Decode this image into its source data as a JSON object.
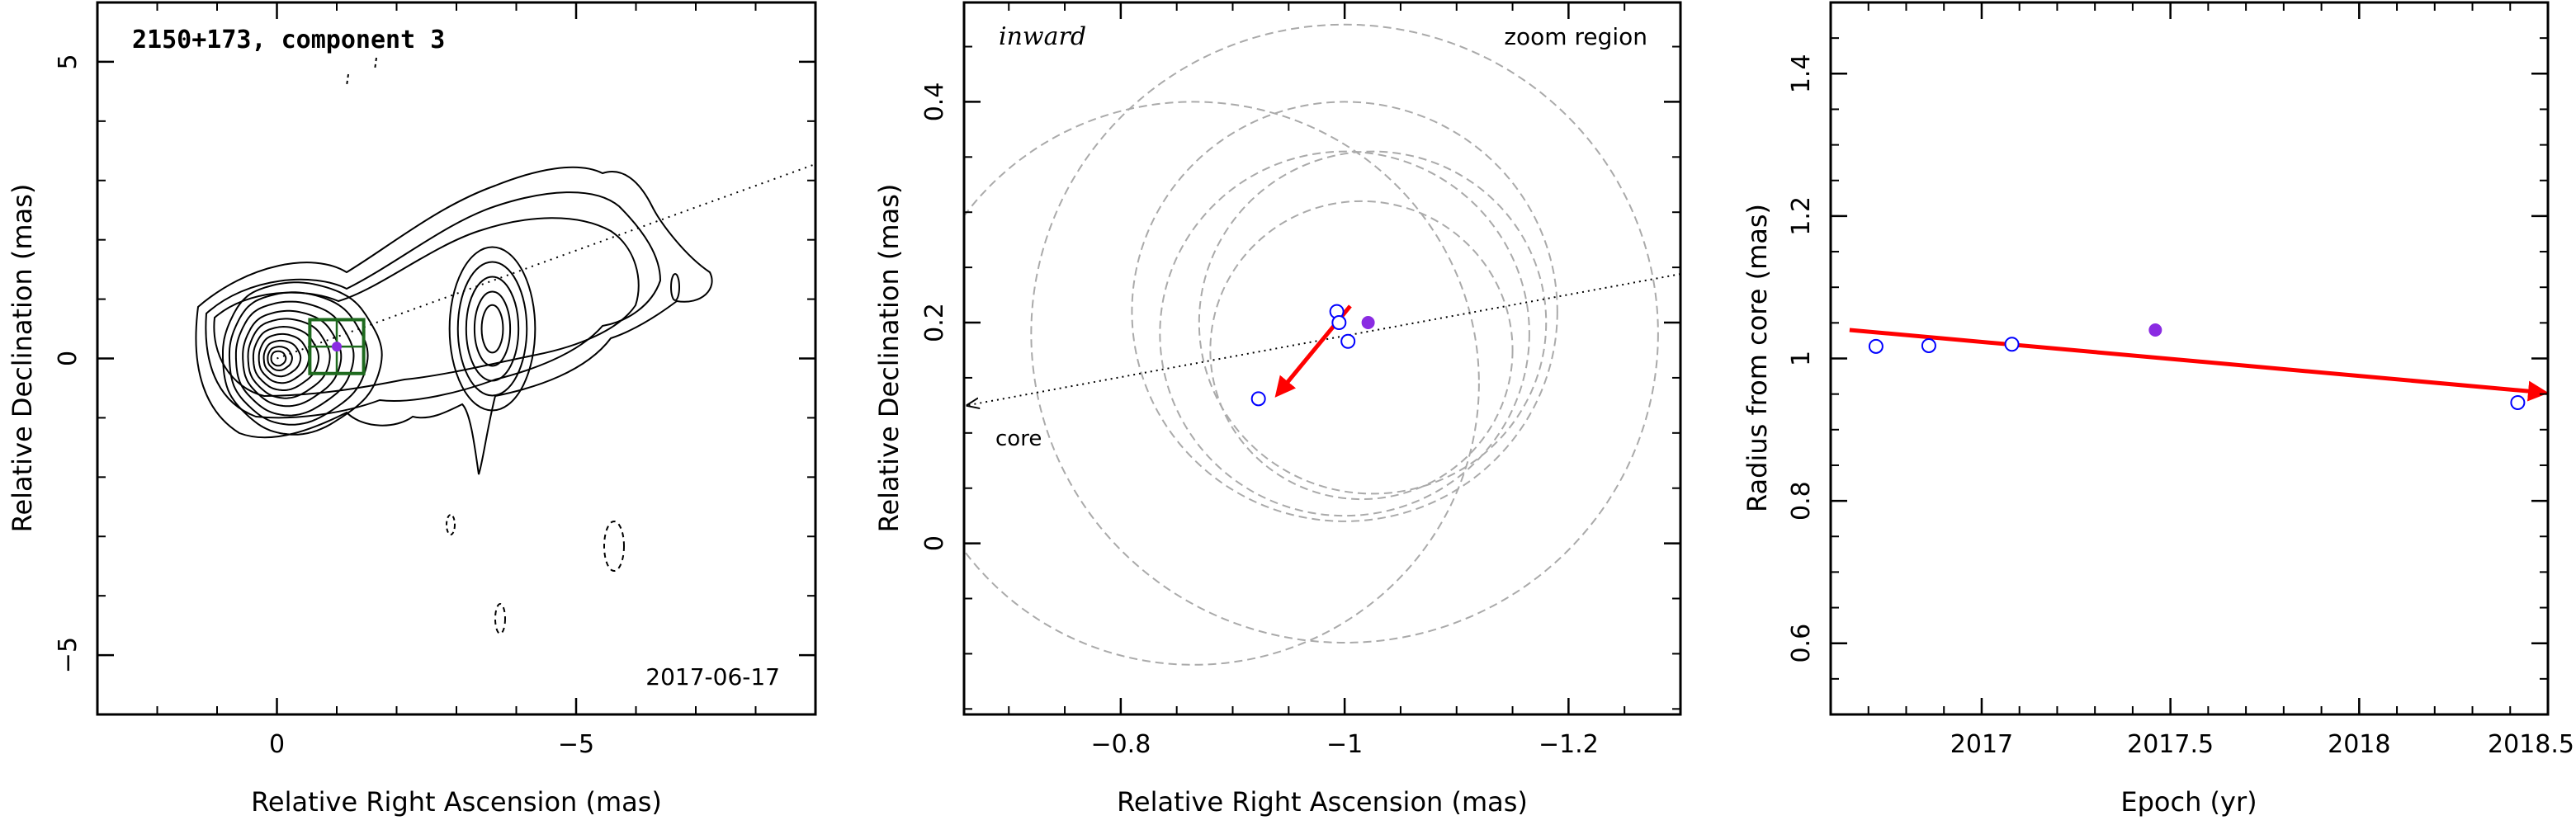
{
  "chart_data": [
    {
      "type": "contour",
      "title": "2150+173, component 3",
      "date": "2017-06-17",
      "xlabel": "Relative Right Ascension (mas)",
      "ylabel": "Relative Declination (mas)",
      "xlim": [
        3,
        -9
      ],
      "ylim": [
        -6,
        6
      ],
      "x_ticks": [
        {
          "v": 0,
          "label": "0"
        },
        {
          "v": -5,
          "label": "−5"
        }
      ],
      "y_ticks": [
        {
          "v": 5,
          "label": "5"
        },
        {
          "v": 0,
          "label": "0"
        },
        {
          "v": -5,
          "label": "−5"
        }
      ],
      "core_line_angle_deg": 20,
      "component": {
        "x": -1.0,
        "y": 0.2,
        "box_halfwidth": 0.45
      },
      "core_peak": {
        "x": 0.0,
        "y": 0.0
      },
      "knot": {
        "x": -3.6,
        "y": 0.5
      },
      "colors": {
        "contour": "#000000",
        "box": "#1e6a1e",
        "point": "#8a2be2"
      }
    },
    {
      "type": "scatter",
      "label_inward": "inward",
      "label_zoom": "zoom region",
      "label_core": "core",
      "xlabel": "Relative Right Ascension (mas)",
      "ylabel": "Relative Declination (mas)",
      "xlim": [
        -0.66,
        -1.3
      ],
      "ylim": [
        -0.155,
        0.49
      ],
      "x_ticks": [
        {
          "v": -0.8,
          "label": "−0.8"
        },
        {
          "v": -1.0,
          "label": "−1"
        },
        {
          "v": -1.2,
          "label": "−1.2"
        }
      ],
      "y_ticks": [
        {
          "v": 0.4,
          "label": "0.4"
        },
        {
          "v": 0.2,
          "label": "0.2"
        },
        {
          "v": 0,
          "label": "0"
        }
      ],
      "points_open": [
        {
          "x": -0.923,
          "y": 0.131
        },
        {
          "x": -0.993,
          "y": 0.21
        },
        {
          "x": -0.995,
          "y": 0.2
        },
        {
          "x": -1.003,
          "y": 0.183
        }
      ],
      "point_filled": {
        "x": -1.021,
        "y": 0.2
      },
      "circles": [
        {
          "x": -0.865,
          "y": 0.145,
          "r": 0.255
        },
        {
          "x": -1.0,
          "y": 0.19,
          "r": 0.28
        },
        {
          "x": -1.0,
          "y": 0.21,
          "r": 0.19
        },
        {
          "x": -1.0,
          "y": 0.19,
          "r": 0.165
        },
        {
          "x": -1.025,
          "y": 0.2,
          "r": 0.155
        },
        {
          "x": -1.015,
          "y": 0.175,
          "r": 0.135
        }
      ],
      "arrow": {
        "x1": -1.005,
        "y1": 0.215,
        "x2": -0.94,
        "y2": 0.135
      },
      "core_line": {
        "x1": -0.66,
        "y1": 0.125,
        "x2": -1.3,
        "y2": 0.244
      },
      "colors": {
        "open": "#0000ff",
        "filled": "#8a2be2",
        "arrow": "#ff0000",
        "circle": "#aaaaaa"
      }
    },
    {
      "type": "scatter",
      "xlabel": "Epoch (yr)",
      "ylabel": "Radius from core (mas)",
      "xlim": [
        16.6,
        18.5
      ],
      "ylim": [
        0.5,
        1.5
      ],
      "x_ticks": [
        {
          "v": 17,
          "label": "2017"
        },
        {
          "v": 17.5,
          "label": "2017.5"
        },
        {
          "v": 18,
          "label": "2018"
        },
        {
          "v": 18.5,
          "label": "2018.5"
        }
      ],
      "y_ticks": [
        {
          "v": 1.4,
          "label": "1.4"
        },
        {
          "v": 1.2,
          "label": "1.2"
        },
        {
          "v": 1.0,
          "label": "1"
        },
        {
          "v": 0.8,
          "label": "0.8"
        },
        {
          "v": 0.6,
          "label": "0.6"
        }
      ],
      "points_open": [
        {
          "x": 16.72,
          "y": 1.017
        },
        {
          "x": 16.86,
          "y": 1.018
        },
        {
          "x": 17.08,
          "y": 1.02
        },
        {
          "x": 18.42,
          "y": 0.938
        }
      ],
      "point_filled": {
        "x": 17.46,
        "y": 1.04
      },
      "fit": {
        "x1": 16.65,
        "y1": 1.04,
        "x2": 18.5,
        "y2": 0.952
      },
      "colors": {
        "open": "#0000ff",
        "filled": "#8a2be2",
        "fit": "#ff0000"
      }
    }
  ]
}
